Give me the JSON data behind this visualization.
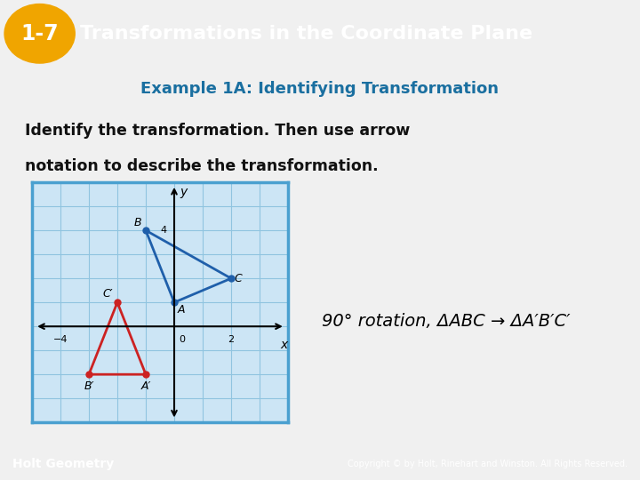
{
  "header_bg_color": "#3a9bbf",
  "header_text": "Transformations in the Coordinate Plane",
  "header_badge_color": "#f0a500",
  "header_badge_text": "1-7",
  "subtitle_text": "Example 1A: Identifying Transformation",
  "subtitle_color": "#1a6fa0",
  "body_text_line1": "Identify the transformation. Then use arrow",
  "body_text_line2": "notation to describe the transformation.",
  "body_text_color": "#111111",
  "slide_bg_color": "#f0f0f0",
  "footer_bg_color": "#2c5f8a",
  "footer_text": "Holt Geometry",
  "footer_copyright": "Copyright © by Holt, Rinehart and Winston. All Rights Reserved.",
  "grid_bg_color": "#cce5f5",
  "grid_line_color": "#90c4e0",
  "blue_triangle": {
    "A": [
      0,
      1
    ],
    "B": [
      -1,
      4
    ],
    "C": [
      2,
      2
    ]
  },
  "red_triangle": {
    "A_prime": [
      -1,
      -2
    ],
    "B_prime": [
      -3,
      -2
    ],
    "C_prime": [
      -2,
      1
    ]
  },
  "blue_color": "#1f5faa",
  "red_color": "#cc2222",
  "graph_xlim": [
    -5,
    4
  ],
  "graph_ylim": [
    -4,
    6
  ]
}
